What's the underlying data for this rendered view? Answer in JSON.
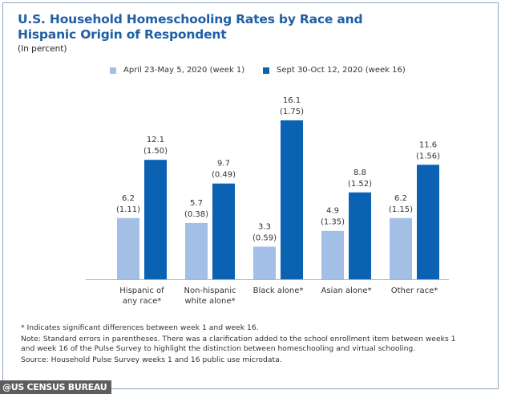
{
  "chart_data": {
    "type": "bar",
    "title": "U.S. Household Homeschooling Rates by Race and Hispanic Origin of Respondent",
    "subtitle": "(In percent)",
    "xlabel": "",
    "ylabel": "",
    "ylim": [
      0,
      16.1
    ],
    "grid": false,
    "legend_position": "top-center",
    "categories": [
      [
        "Hispanic of",
        "any race*"
      ],
      [
        "Non-hispanic",
        "white alone*"
      ],
      [
        "Black alone*"
      ],
      [
        "Asian alone*"
      ],
      [
        "Other race*"
      ]
    ],
    "series": [
      {
        "name": "April 23-May 5, 2020 (week 1)",
        "color": "#a3bfe6",
        "values": [
          6.2,
          5.7,
          3.3,
          4.9,
          6.2
        ],
        "value_labels": [
          "6.2",
          "5.7",
          "3.3",
          "4.9",
          "6.2"
        ],
        "standard_errors": [
          "(1.11)",
          "(0.38)",
          "(0.59)",
          "(1.35)",
          "(1.15)"
        ]
      },
      {
        "name": "Sept 30-Oct 12, 2020 (week 16)",
        "color": "#0b62b3",
        "values": [
          12.1,
          9.7,
          16.1,
          8.8,
          11.6
        ],
        "value_labels": [
          "12.1",
          "9.7",
          "16.1",
          "8.8",
          "11.6"
        ],
        "standard_errors": [
          "(1.50)",
          "(0.49)",
          "(1.75)",
          "(1.52)",
          "(1.56)"
        ]
      }
    ]
  },
  "notes": {
    "significance": "* Indicates significant differences between week 1 and week 16.",
    "note": "Note: Standard errors in parentheses. There was a clarification added to the school enrollment item between weeks 1 and week 16 of the Pulse Survey to highlight the distinction between homeschooling and virtual schooling.",
    "source": "Source: Household Pulse Survey weeks 1 and 16 public use microdata."
  },
  "credit": "@US CENSUS BUREAU",
  "colors": {
    "title": "#1f5fa5",
    "axis": "#b5b5b5",
    "frame": "#8fa3c2"
  }
}
